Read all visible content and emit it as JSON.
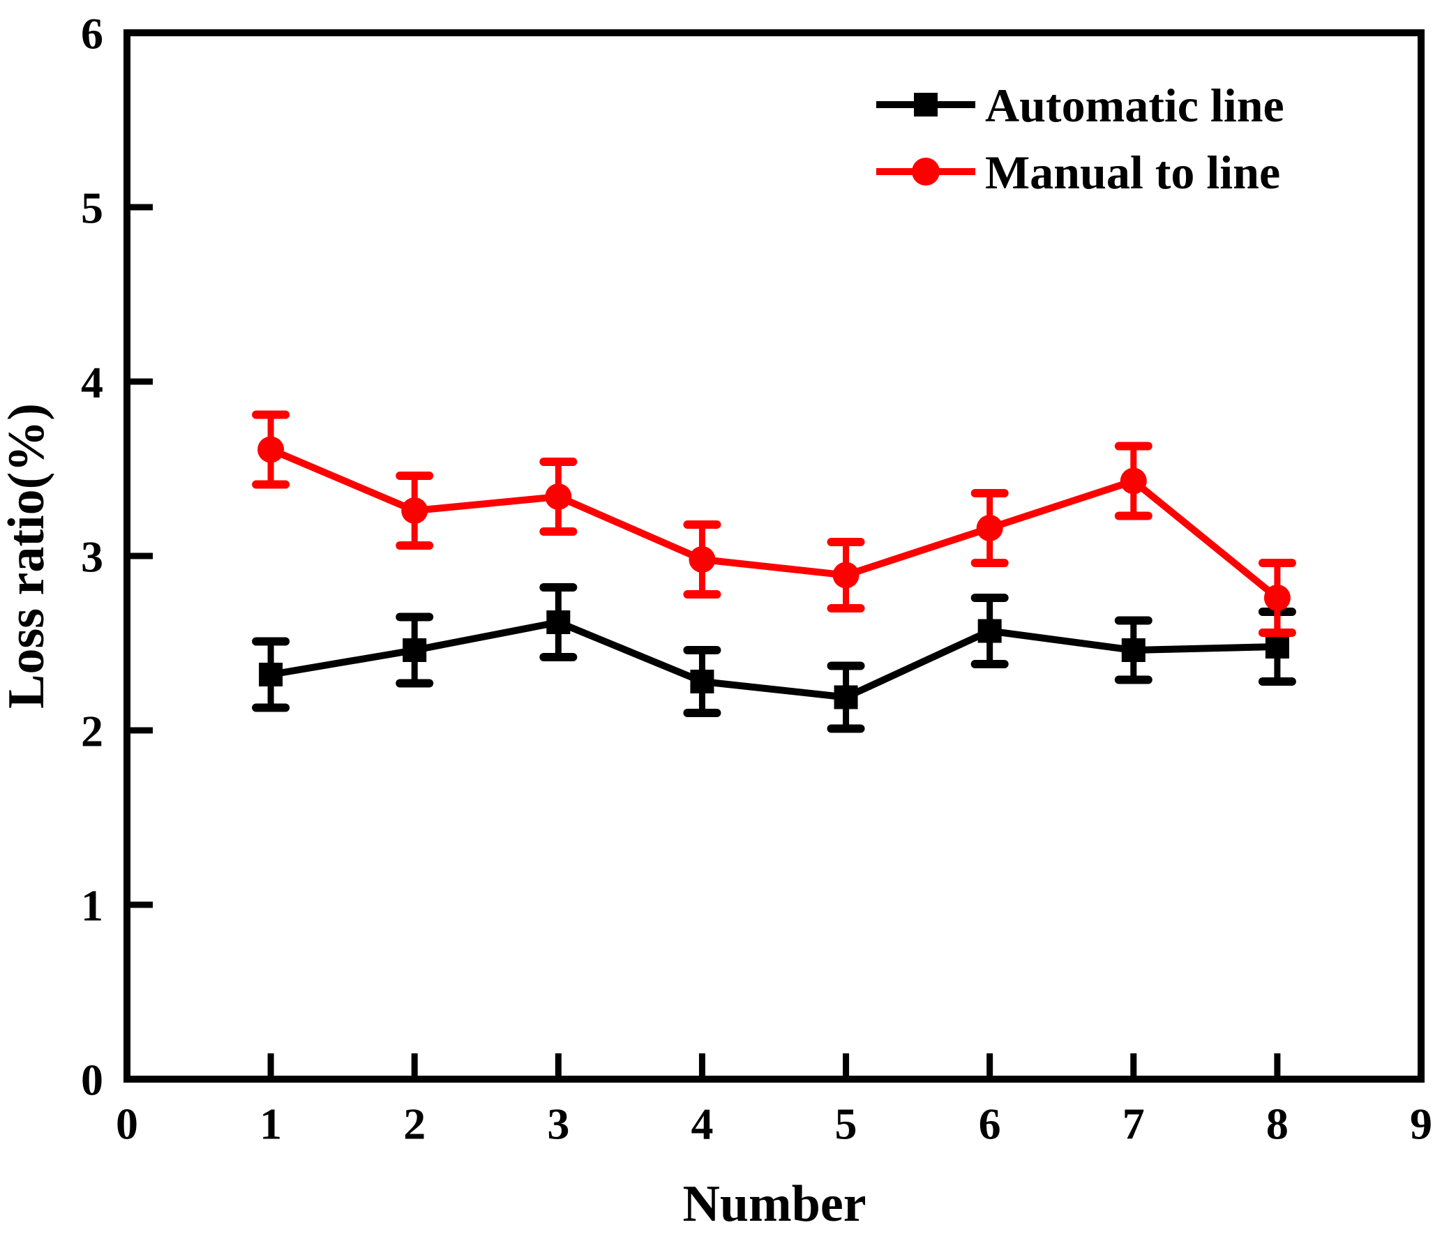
{
  "figure": {
    "background": "#ffffff"
  },
  "chart_data": {
    "type": "line",
    "title": "",
    "xlabel": "Number",
    "ylabel": "Loss ratio(%)",
    "xlim": [
      0,
      9
    ],
    "ylim": [
      0,
      6
    ],
    "xticks": [
      0,
      1,
      2,
      3,
      4,
      5,
      6,
      7,
      8,
      9
    ],
    "yticks": [
      0,
      1,
      2,
      3,
      4,
      5,
      6
    ],
    "x": [
      1,
      2,
      3,
      4,
      5,
      6,
      7,
      8
    ],
    "series": [
      {
        "name": "Automatic line",
        "color": "#000000",
        "marker": "square",
        "values": [
          2.32,
          2.46,
          2.62,
          2.28,
          2.19,
          2.57,
          2.46,
          2.48
        ],
        "errors": [
          0.19,
          0.19,
          0.2,
          0.18,
          0.18,
          0.19,
          0.17,
          0.2
        ]
      },
      {
        "name": "Manual to line",
        "color": "#ff0000",
        "marker": "circle",
        "values": [
          3.61,
          3.26,
          3.34,
          2.98,
          2.89,
          3.16,
          3.43,
          2.76
        ],
        "errors": [
          0.2,
          0.2,
          0.2,
          0.2,
          0.19,
          0.2,
          0.2,
          0.2
        ]
      }
    ],
    "legend": {
      "position": "top-right",
      "entries": [
        "Automatic line",
        "Manual to line"
      ]
    },
    "grid": false
  }
}
